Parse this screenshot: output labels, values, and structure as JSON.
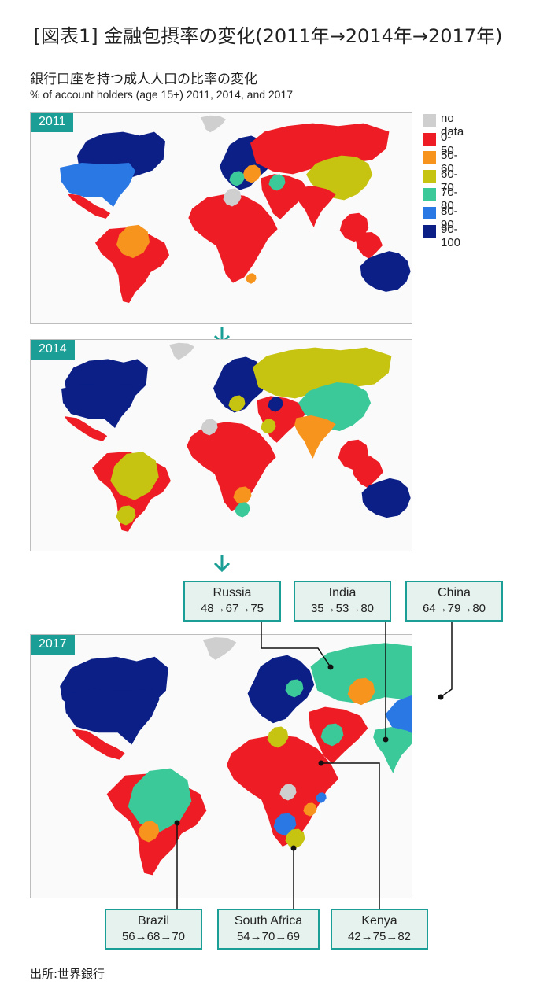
{
  "title": "[図表1] 金融包摂率の変化(2011年→2014年→2017年)",
  "subtitle_ja": "銀行口座を持つ成人人口の比率の変化",
  "subtitle_en": "% of account holders (age 15+) 2011, 2014, and 2017",
  "panels": [
    {
      "year": "2011"
    },
    {
      "year": "2014"
    },
    {
      "year": "2017"
    }
  ],
  "legend": [
    {
      "label": "no data",
      "color": "#cfcfcf"
    },
    {
      "label": "0-50",
      "color": "#ee1c24"
    },
    {
      "label": "50-60",
      "color": "#f7941d"
    },
    {
      "label": "60-70",
      "color": "#c7c311"
    },
    {
      "label": "70-80",
      "color": "#3cc99a"
    },
    {
      "label": "80-90",
      "color": "#2a78e4"
    },
    {
      "label": "90-100",
      "color": "#0b1f87"
    }
  ],
  "callouts": [
    {
      "country": "Russia",
      "values": "48→67→75"
    },
    {
      "country": "India",
      "values": "35→53→80"
    },
    {
      "country": "China",
      "values": "64→79→80"
    },
    {
      "country": "Brazil",
      "values": "56→68→70"
    },
    {
      "country": "South Africa",
      "values": "54→70→69"
    },
    {
      "country": "Kenya",
      "values": "42→75→82"
    }
  ],
  "source": "出所:世界銀行"
}
